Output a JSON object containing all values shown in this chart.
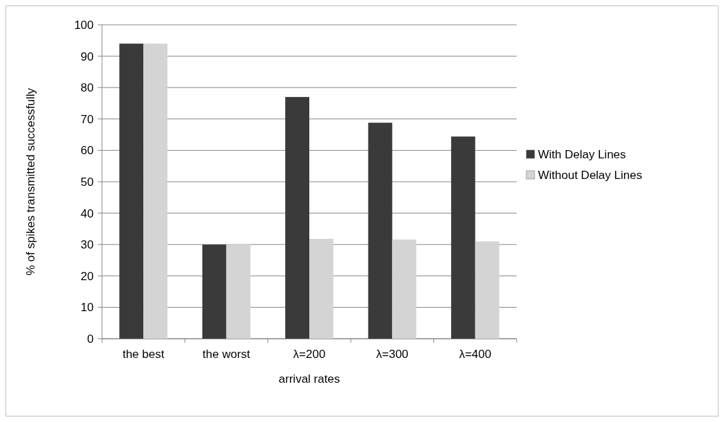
{
  "chart_data": {
    "type": "bar",
    "xlabel": "arrival  rates",
    "ylabel": "% of spikes  transmitted successfully",
    "categories": [
      "the best",
      "the worst",
      "λ=200",
      "λ=300",
      "λ=400"
    ],
    "series": [
      {
        "name": "With Delay Lines",
        "color": "#3a3a3a",
        "values": [
          94,
          30,
          77,
          68.8,
          64.4
        ]
      },
      {
        "name": "Without Delay Lines",
        "color": "#d4d4d4",
        "values": [
          94,
          30,
          31.8,
          31.6,
          31
        ]
      }
    ],
    "ylim": [
      0,
      100
    ],
    "yticks": [
      0,
      10,
      20,
      30,
      40,
      50,
      60,
      70,
      80,
      90,
      100
    ],
    "grid": "y",
    "legend": "right"
  }
}
